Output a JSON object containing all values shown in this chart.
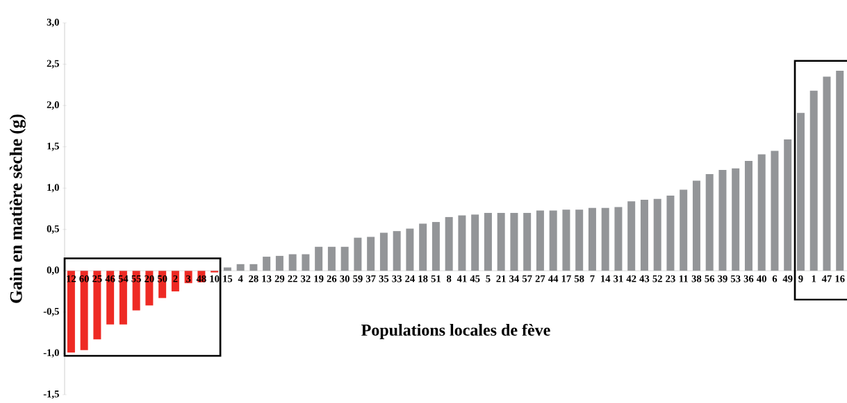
{
  "chart_data": {
    "type": "bar",
    "xlabel": "Populations locales de fève",
    "ylabel": "Gain en matière sèche (g)",
    "categories": [
      "12",
      "60",
      "25",
      "46",
      "54",
      "55",
      "20",
      "50",
      "2",
      "3",
      "48",
      "10",
      "15",
      "4",
      "28",
      "13",
      "29",
      "22",
      "32",
      "19",
      "26",
      "30",
      "59",
      "37",
      "35",
      "33",
      "24",
      "18",
      "51",
      "8",
      "41",
      "45",
      "5",
      "21",
      "34",
      "57",
      "27",
      "44",
      "17",
      "58",
      "7",
      "14",
      "31",
      "42",
      "43",
      "52",
      "23",
      "11",
      "38",
      "56",
      "39",
      "53",
      "36",
      "40",
      "6",
      "49",
      "9",
      "1",
      "47",
      "16"
    ],
    "values": [
      -0.99,
      -0.96,
      -0.83,
      -0.65,
      -0.65,
      -0.48,
      -0.42,
      -0.33,
      -0.25,
      -0.15,
      -0.14,
      -0.02,
      0.04,
      0.08,
      0.08,
      0.17,
      0.18,
      0.2,
      0.2,
      0.29,
      0.29,
      0.29,
      0.4,
      0.41,
      0.46,
      0.48,
      0.51,
      0.57,
      0.59,
      0.65,
      0.67,
      0.68,
      0.7,
      0.7,
      0.7,
      0.7,
      0.73,
      0.73,
      0.74,
      0.74,
      0.76,
      0.76,
      0.77,
      0.84,
      0.86,
      0.87,
      0.91,
      0.98,
      1.09,
      1.17,
      1.22,
      1.24,
      1.33,
      1.41,
      1.45,
      1.59,
      1.91,
      2.18,
      2.35,
      2.42
    ],
    "colors": [
      "#ee2a24",
      "#ee2a24",
      "#ee2a24",
      "#ee2a24",
      "#ee2a24",
      "#ee2a24",
      "#ee2a24",
      "#ee2a24",
      "#ee2a24",
      "#ee2a24",
      "#ee2a24",
      "#ee2a24",
      "#939598",
      "#939598",
      "#939598",
      "#939598",
      "#939598",
      "#939598",
      "#939598",
      "#939598",
      "#939598",
      "#939598",
      "#939598",
      "#939598",
      "#939598",
      "#939598",
      "#939598",
      "#939598",
      "#939598",
      "#939598",
      "#939598",
      "#939598",
      "#939598",
      "#939598",
      "#939598",
      "#939598",
      "#939598",
      "#939598",
      "#939598",
      "#939598",
      "#939598",
      "#939598",
      "#939598",
      "#939598",
      "#939598",
      "#939598",
      "#939598",
      "#939598",
      "#939598",
      "#939598",
      "#939598",
      "#939598",
      "#939598",
      "#939598",
      "#939598",
      "#939598",
      "#939598",
      "#939598",
      "#939598",
      "#939598"
    ],
    "ylim": [
      -1.5,
      3.0
    ],
    "yticks": [
      {
        "value": -1.5,
        "label": "-1,5"
      },
      {
        "value": -1.0,
        "label": "-1,0"
      },
      {
        "value": -0.5,
        "label": "-0,5"
      },
      {
        "value": 0,
        "label": "0,0"
      },
      {
        "value": 0.5,
        "label": "0,5"
      },
      {
        "value": 1.0,
        "label": "1,0"
      },
      {
        "value": 1.5,
        "label": "1,5"
      },
      {
        "value": 2.0,
        "label": "2,0"
      },
      {
        "value": 2.5,
        "label": "2,5"
      },
      {
        "value": 3.0,
        "label": "3,0"
      }
    ],
    "grid": false
  }
}
